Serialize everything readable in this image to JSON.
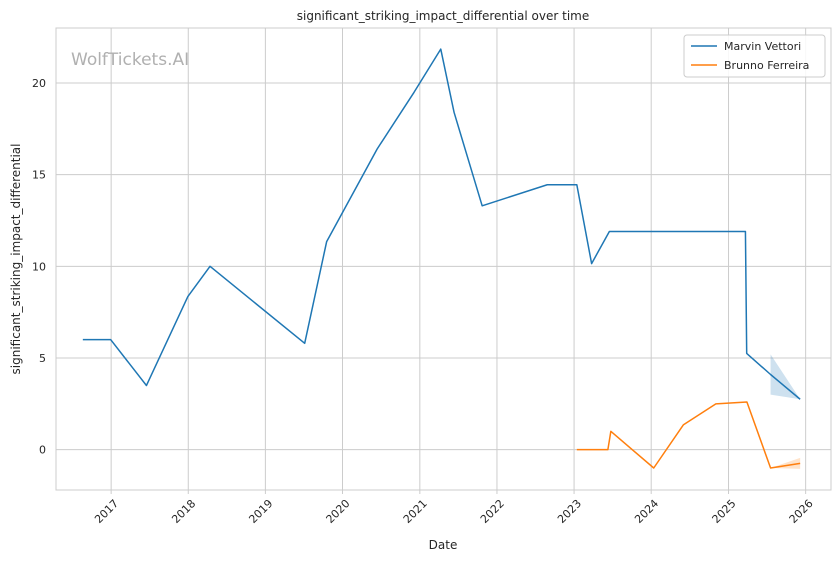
{
  "chart_data": {
    "type": "line",
    "title": "significant_striking_impact_differential over time",
    "xlabel": "Date",
    "ylabel": "significant_striking_impact_differential",
    "watermark": "WolfTickets.AI",
    "xlim": [
      "2016-04-15",
      "2026-05-01"
    ],
    "ylim": [
      -2.2,
      23.0
    ],
    "x_ticks": [
      "2017-01-01",
      "2018-01-01",
      "2019-01-01",
      "2020-01-01",
      "2021-01-01",
      "2022-01-01",
      "2023-01-01",
      "2024-01-01",
      "2025-01-01",
      "2026-01-01"
    ],
    "x_tick_labels": [
      "2017",
      "2018",
      "2019",
      "2020",
      "2021",
      "2022",
      "2023",
      "2024",
      "2025",
      "2026"
    ],
    "y_ticks": [
      0,
      5,
      10,
      15,
      20
    ],
    "grid": true,
    "legend_position": "top-right",
    "series": [
      {
        "name": "Marvin Vettori",
        "color": "#1f77b4",
        "points": [
          [
            "2016-08-20",
            6.0
          ],
          [
            "2016-12-30",
            6.0
          ],
          [
            "2017-06-17",
            3.5
          ],
          [
            "2017-12-30",
            8.35
          ],
          [
            "2018-04-14",
            10.0
          ],
          [
            "2019-07-06",
            5.8
          ],
          [
            "2019-10-18",
            11.35
          ],
          [
            "2020-06-13",
            16.4
          ],
          [
            "2020-12-05",
            19.5
          ],
          [
            "2021-04-10",
            21.85
          ],
          [
            "2021-06-12",
            18.4
          ],
          [
            "2021-10-23",
            13.3
          ],
          [
            "2022-08-27",
            14.45
          ],
          [
            "2023-01-14",
            14.45
          ],
          [
            "2023-03-25",
            10.15
          ],
          [
            "2023-06-17",
            11.9
          ],
          [
            "2025-03-22",
            11.9
          ],
          [
            "2025-03-28",
            5.25
          ],
          [
            "2025-07-19",
            4.1
          ],
          [
            "2025-12-06",
            2.75
          ]
        ],
        "band": [
          [
            "2025-07-19",
            3.0,
            5.2
          ],
          [
            "2025-12-06",
            2.75,
            2.75
          ]
        ]
      },
      {
        "name": "Brunno Ferreira",
        "color": "#ff7f0e",
        "points": [
          [
            "2023-01-14",
            0.0
          ],
          [
            "2023-06-10",
            0.0
          ],
          [
            "2023-06-24",
            1.0
          ],
          [
            "2024-01-13",
            -1.0
          ],
          [
            "2024-06-01",
            1.35
          ],
          [
            "2024-11-02",
            2.5
          ],
          [
            "2025-03-29",
            2.6
          ],
          [
            "2025-07-19",
            -1.0
          ],
          [
            "2025-12-06",
            -0.75
          ]
        ],
        "band": [
          [
            "2025-07-19",
            -1.0,
            -1.0
          ],
          [
            "2025-12-06",
            -1.05,
            -0.45
          ]
        ]
      }
    ]
  }
}
